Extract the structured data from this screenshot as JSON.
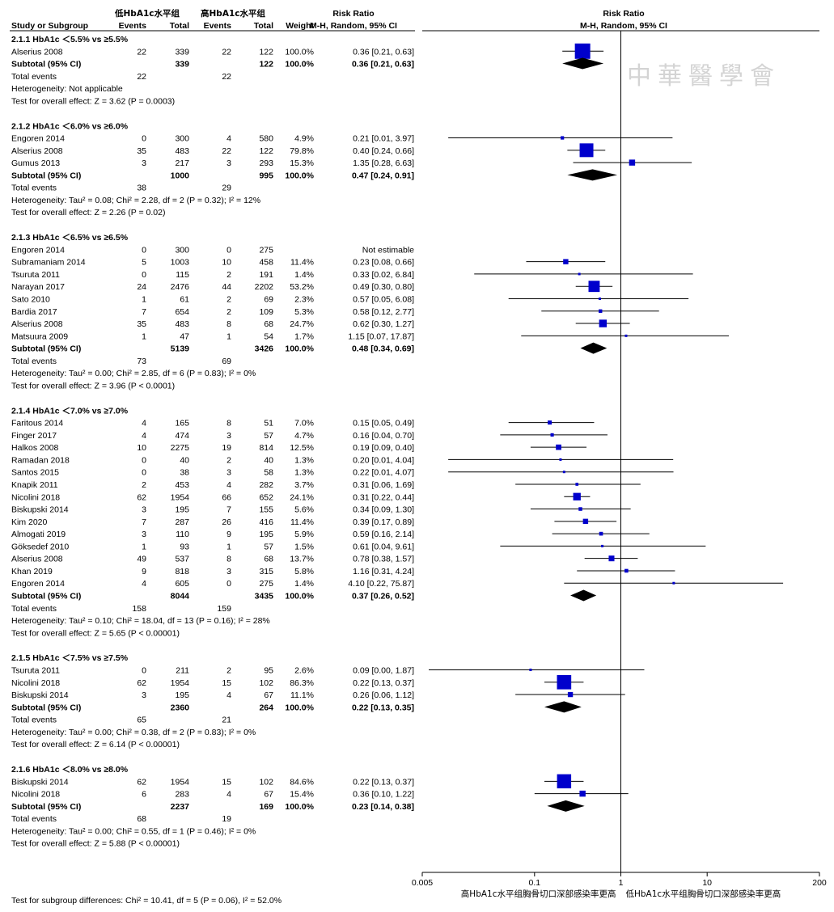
{
  "header": {
    "group1": "低HbA1c水平组",
    "group2": "高HbA1c水平组",
    "col_study": "Study or Subgroup",
    "col_events1": "Events",
    "col_total1": "Total",
    "col_events2": "Events",
    "col_total2": "Total",
    "col_weight": "Weight",
    "col_rr_title": "Risk Ratio",
    "col_rr_method": "M-H, Random, 95% CI",
    "plot_title": "Risk Ratio",
    "plot_method": "M-H, Random, 95% CI"
  },
  "watermark": "中華醫學會",
  "colors": {
    "square": "#0000cc",
    "diamond": "#000000",
    "line": "#000000"
  },
  "chart_data": {
    "type": "forest",
    "scale": "log",
    "xlim": [
      0.005,
      200
    ],
    "x_ticks": [
      {
        "value": 0.005,
        "label": "0.005"
      },
      {
        "value": 0.1,
        "label": "0.1"
      },
      {
        "value": 1,
        "label": "1"
      },
      {
        "value": 10,
        "label": "10"
      },
      {
        "value": 200,
        "label": "200"
      }
    ],
    "favours_left": "高HbA1c水平组胸骨切口深部感染率更高",
    "favours_right": "低HbA1c水平组胸骨切口深部感染率更高",
    "subgroups": [
      {
        "heading": "2.1.1 HbA1c ＜5.5% vs ≥5.5%",
        "studies": [
          {
            "name": "Alserius 2008",
            "e1": "22",
            "t1": "339",
            "e2": "22",
            "t2": "122",
            "weight": "100.0%",
            "rr": 0.36,
            "lo": 0.21,
            "hi": 0.63,
            "ci": "0.36 [0.21, 0.63]"
          }
        ],
        "subtotal": {
          "label": "Subtotal (95% CI)",
          "t1": "339",
          "t2": "122",
          "weight": "100.0%",
          "rr": 0.36,
          "lo": 0.21,
          "hi": 0.63,
          "ci": "0.36 [0.21, 0.63]"
        },
        "total_events": {
          "label": "Total events",
          "e1": "22",
          "e2": "22"
        },
        "heterogeneity": "Heterogeneity: Not applicable",
        "overall": "Test for overall effect: Z = 3.62 (P = 0.0003)"
      },
      {
        "heading": "2.1.2 HbA1c ＜6.0% vs ≥6.0%",
        "studies": [
          {
            "name": "Engoren 2014",
            "e1": "0",
            "t1": "300",
            "e2": "4",
            "t2": "580",
            "weight": "4.9%",
            "rr": 0.21,
            "lo": 0.01,
            "hi": 3.97,
            "ci": "0.21 [0.01, 3.97]"
          },
          {
            "name": "Alserius 2008",
            "e1": "35",
            "t1": "483",
            "e2": "22",
            "t2": "122",
            "weight": "79.8%",
            "rr": 0.4,
            "lo": 0.24,
            "hi": 0.66,
            "ci": "0.40 [0.24, 0.66]"
          },
          {
            "name": "Gumus 2013",
            "e1": "3",
            "t1": "217",
            "e2": "3",
            "t2": "293",
            "weight": "15.3%",
            "rr": 1.35,
            "lo": 0.28,
            "hi": 6.63,
            "ci": "1.35 [0.28, 6.63]"
          }
        ],
        "subtotal": {
          "label": "Subtotal (95% CI)",
          "t1": "1000",
          "t2": "995",
          "weight": "100.0%",
          "rr": 0.47,
          "lo": 0.24,
          "hi": 0.91,
          "ci": "0.47 [0.24, 0.91]"
        },
        "total_events": {
          "label": "Total events",
          "e1": "38",
          "e2": "29"
        },
        "heterogeneity": "Heterogeneity: Tau² = 0.08; Chi² = 2.28, df = 2 (P = 0.32); I² = 12%",
        "overall": "Test for overall effect: Z = 2.26 (P = 0.02)"
      },
      {
        "heading": "2.1.3 HbA1c ＜6.5% vs ≥6.5%",
        "studies": [
          {
            "name": "Engoren 2014",
            "e1": "0",
            "t1": "300",
            "e2": "0",
            "t2": "275",
            "weight": "",
            "rr": null,
            "lo": null,
            "hi": null,
            "ci": "Not estimable"
          },
          {
            "name": "Subramaniam 2014",
            "e1": "5",
            "t1": "1003",
            "e2": "10",
            "t2": "458",
            "weight": "11.4%",
            "rr": 0.23,
            "lo": 0.08,
            "hi": 0.66,
            "ci": "0.23 [0.08, 0.66]"
          },
          {
            "name": "Tsuruta 2011",
            "e1": "0",
            "t1": "115",
            "e2": "2",
            "t2": "191",
            "weight": "1.4%",
            "rr": 0.33,
            "lo": 0.02,
            "hi": 6.84,
            "ci": "0.33 [0.02, 6.84]"
          },
          {
            "name": "Narayan 2017",
            "e1": "24",
            "t1": "2476",
            "e2": "44",
            "t2": "2202",
            "weight": "53.2%",
            "rr": 0.49,
            "lo": 0.3,
            "hi": 0.8,
            "ci": "0.49 [0.30, 0.80]"
          },
          {
            "name": "Sato 2010",
            "e1": "1",
            "t1": "61",
            "e2": "2",
            "t2": "69",
            "weight": "2.3%",
            "rr": 0.57,
            "lo": 0.05,
            "hi": 6.08,
            "ci": "0.57 [0.05, 6.08]"
          },
          {
            "name": "Bardia 2017",
            "e1": "7",
            "t1": "654",
            "e2": "2",
            "t2": "109",
            "weight": "5.3%",
            "rr": 0.58,
            "lo": 0.12,
            "hi": 2.77,
            "ci": "0.58 [0.12, 2.77]"
          },
          {
            "name": "Alserius 2008",
            "e1": "35",
            "t1": "483",
            "e2": "8",
            "t2": "68",
            "weight": "24.7%",
            "rr": 0.62,
            "lo": 0.3,
            "hi": 1.27,
            "ci": "0.62 [0.30, 1.27]"
          },
          {
            "name": "Matsuura 2009",
            "e1": "1",
            "t1": "47",
            "e2": "1",
            "t2": "54",
            "weight": "1.7%",
            "rr": 1.15,
            "lo": 0.07,
            "hi": 17.87,
            "ci": "1.15 [0.07, 17.87]"
          }
        ],
        "subtotal": {
          "label": "Subtotal (95% CI)",
          "t1": "5139",
          "t2": "3426",
          "weight": "100.0%",
          "rr": 0.48,
          "lo": 0.34,
          "hi": 0.69,
          "ci": "0.48 [0.34, 0.69]"
        },
        "total_events": {
          "label": "Total events",
          "e1": "73",
          "e2": "69"
        },
        "heterogeneity": "Heterogeneity: Tau² = 0.00; Chi² = 2.85, df = 6 (P = 0.83); I² = 0%",
        "overall": "Test for overall effect: Z = 3.96 (P < 0.0001)"
      },
      {
        "heading": "2.1.4 HbA1c ＜7.0% vs ≥7.0%",
        "studies": [
          {
            "name": "Faritous 2014",
            "e1": "4",
            "t1": "165",
            "e2": "8",
            "t2": "51",
            "weight": "7.0%",
            "rr": 0.15,
            "lo": 0.05,
            "hi": 0.49,
            "ci": "0.15 [0.05, 0.49]"
          },
          {
            "name": "Finger 2017",
            "e1": "4",
            "t1": "474",
            "e2": "3",
            "t2": "57",
            "weight": "4.7%",
            "rr": 0.16,
            "lo": 0.04,
            "hi": 0.7,
            "ci": "0.16 [0.04, 0.70]"
          },
          {
            "name": "Halkos 2008",
            "e1": "10",
            "t1": "2275",
            "e2": "19",
            "t2": "814",
            "weight": "12.5%",
            "rr": 0.19,
            "lo": 0.09,
            "hi": 0.4,
            "ci": "0.19 [0.09, 0.40]"
          },
          {
            "name": "Ramadan 2018",
            "e1": "0",
            "t1": "40",
            "e2": "2",
            "t2": "40",
            "weight": "1.3%",
            "rr": 0.2,
            "lo": 0.01,
            "hi": 4.04,
            "ci": "0.20 [0.01, 4.04]"
          },
          {
            "name": "Santos 2015",
            "e1": "0",
            "t1": "38",
            "e2": "3",
            "t2": "58",
            "weight": "1.3%",
            "rr": 0.22,
            "lo": 0.01,
            "hi": 4.07,
            "ci": "0.22 [0.01, 4.07]"
          },
          {
            "name": "Knapik 2011",
            "e1": "2",
            "t1": "453",
            "e2": "4",
            "t2": "282",
            "weight": "3.7%",
            "rr": 0.31,
            "lo": 0.06,
            "hi": 1.69,
            "ci": "0.31 [0.06, 1.69]"
          },
          {
            "name": "Nicolini 2018",
            "e1": "62",
            "t1": "1954",
            "e2": "66",
            "t2": "652",
            "weight": "24.1%",
            "rr": 0.31,
            "lo": 0.22,
            "hi": 0.44,
            "ci": "0.31 [0.22, 0.44]"
          },
          {
            "name": "Biskupski 2014",
            "e1": "3",
            "t1": "195",
            "e2": "7",
            "t2": "155",
            "weight": "5.6%",
            "rr": 0.34,
            "lo": 0.09,
            "hi": 1.3,
            "ci": "0.34 [0.09, 1.30]"
          },
          {
            "name": "Kim 2020",
            "e1": "7",
            "t1": "287",
            "e2": "26",
            "t2": "416",
            "weight": "11.4%",
            "rr": 0.39,
            "lo": 0.17,
            "hi": 0.89,
            "ci": "0.39 [0.17, 0.89]"
          },
          {
            "name": "Almogati 2019",
            "e1": "3",
            "t1": "110",
            "e2": "9",
            "t2": "195",
            "weight": "5.9%",
            "rr": 0.59,
            "lo": 0.16,
            "hi": 2.14,
            "ci": "0.59 [0.16, 2.14]"
          },
          {
            "name": "Göksedef 2010",
            "e1": "1",
            "t1": "93",
            "e2": "1",
            "t2": "57",
            "weight": "1.5%",
            "rr": 0.61,
            "lo": 0.04,
            "hi": 9.61,
            "ci": "0.61 [0.04, 9.61]"
          },
          {
            "name": "Alserius 2008",
            "e1": "49",
            "t1": "537",
            "e2": "8",
            "t2": "68",
            "weight": "13.7%",
            "rr": 0.78,
            "lo": 0.38,
            "hi": 1.57,
            "ci": "0.78 [0.38, 1.57]"
          },
          {
            "name": "Khan 2019",
            "e1": "9",
            "t1": "818",
            "e2": "3",
            "t2": "315",
            "weight": "5.8%",
            "rr": 1.16,
            "lo": 0.31,
            "hi": 4.24,
            "ci": "1.16 [0.31, 4.24]"
          },
          {
            "name": "Engoren 2014",
            "e1": "4",
            "t1": "605",
            "e2": "0",
            "t2": "275",
            "weight": "1.4%",
            "rr": 4.1,
            "lo": 0.22,
            "hi": 75.87,
            "ci": "4.10 [0.22, 75.87]"
          }
        ],
        "subtotal": {
          "label": "Subtotal (95% CI)",
          "t1": "8044",
          "t2": "3435",
          "weight": "100.0%",
          "rr": 0.37,
          "lo": 0.26,
          "hi": 0.52,
          "ci": "0.37 [0.26, 0.52]"
        },
        "total_events": {
          "label": "Total events",
          "e1": "158",
          "e2": "159"
        },
        "heterogeneity": "Heterogeneity: Tau² = 0.10; Chi² = 18.04, df = 13 (P = 0.16); I² = 28%",
        "overall": "Test for overall effect: Z = 5.65 (P < 0.00001)"
      },
      {
        "heading": "2.1.5 HbA1c ＜7.5% vs ≥7.5%",
        "studies": [
          {
            "name": "Tsuruta 2011",
            "e1": "0",
            "t1": "211",
            "e2": "2",
            "t2": "95",
            "weight": "2.6%",
            "rr": 0.09,
            "lo": 0.0,
            "hi": 1.87,
            "ci": "0.09 [0.00, 1.87]"
          },
          {
            "name": "Nicolini 2018",
            "e1": "62",
            "t1": "1954",
            "e2": "15",
            "t2": "102",
            "weight": "86.3%",
            "rr": 0.22,
            "lo": 0.13,
            "hi": 0.37,
            "ci": "0.22 [0.13, 0.37]"
          },
          {
            "name": "Biskupski 2014",
            "e1": "3",
            "t1": "195",
            "e2": "4",
            "t2": "67",
            "weight": "11.1%",
            "rr": 0.26,
            "lo": 0.06,
            "hi": 1.12,
            "ci": "0.26 [0.06, 1.12]"
          }
        ],
        "subtotal": {
          "label": "Subtotal (95% CI)",
          "t1": "2360",
          "t2": "264",
          "weight": "100.0%",
          "rr": 0.22,
          "lo": 0.13,
          "hi": 0.35,
          "ci": "0.22 [0.13, 0.35]"
        },
        "total_events": {
          "label": "Total events",
          "e1": "65",
          "e2": "21"
        },
        "heterogeneity": "Heterogeneity: Tau² = 0.00; Chi² = 0.38, df = 2 (P = 0.83); I² = 0%",
        "overall": "Test for overall effect: Z = 6.14 (P < 0.00001)"
      },
      {
        "heading": "2.1.6 HbA1c ＜8.0% vs ≥8.0%",
        "studies": [
          {
            "name": "Biskupski 2014",
            "e1": "62",
            "t1": "1954",
            "e2": "15",
            "t2": "102",
            "weight": "84.6%",
            "rr": 0.22,
            "lo": 0.13,
            "hi": 0.37,
            "ci": "0.22 [0.13, 0.37]"
          },
          {
            "name": "Nicolini 2018",
            "e1": "6",
            "t1": "283",
            "e2": "4",
            "t2": "67",
            "weight": "15.4%",
            "rr": 0.36,
            "lo": 0.1,
            "hi": 1.22,
            "ci": "0.36 [0.10, 1.22]"
          }
        ],
        "subtotal": {
          "label": "Subtotal (95% CI)",
          "t1": "2237",
          "t2": "169",
          "weight": "100.0%",
          "rr": 0.23,
          "lo": 0.14,
          "hi": 0.38,
          "ci": "0.23 [0.14, 0.38]"
        },
        "total_events": {
          "label": "Total events",
          "e1": "68",
          "e2": "19"
        },
        "heterogeneity": "Heterogeneity: Tau² = 0.00; Chi² = 0.55, df = 1 (P = 0.46); I² = 0%",
        "overall": "Test for overall effect: Z = 5.88 (P < 0.00001)"
      }
    ],
    "subgroup_differences": "Test for subgroup differences: Chi² = 10.41, df = 5 (P = 0.06), I² = 52.0%"
  }
}
